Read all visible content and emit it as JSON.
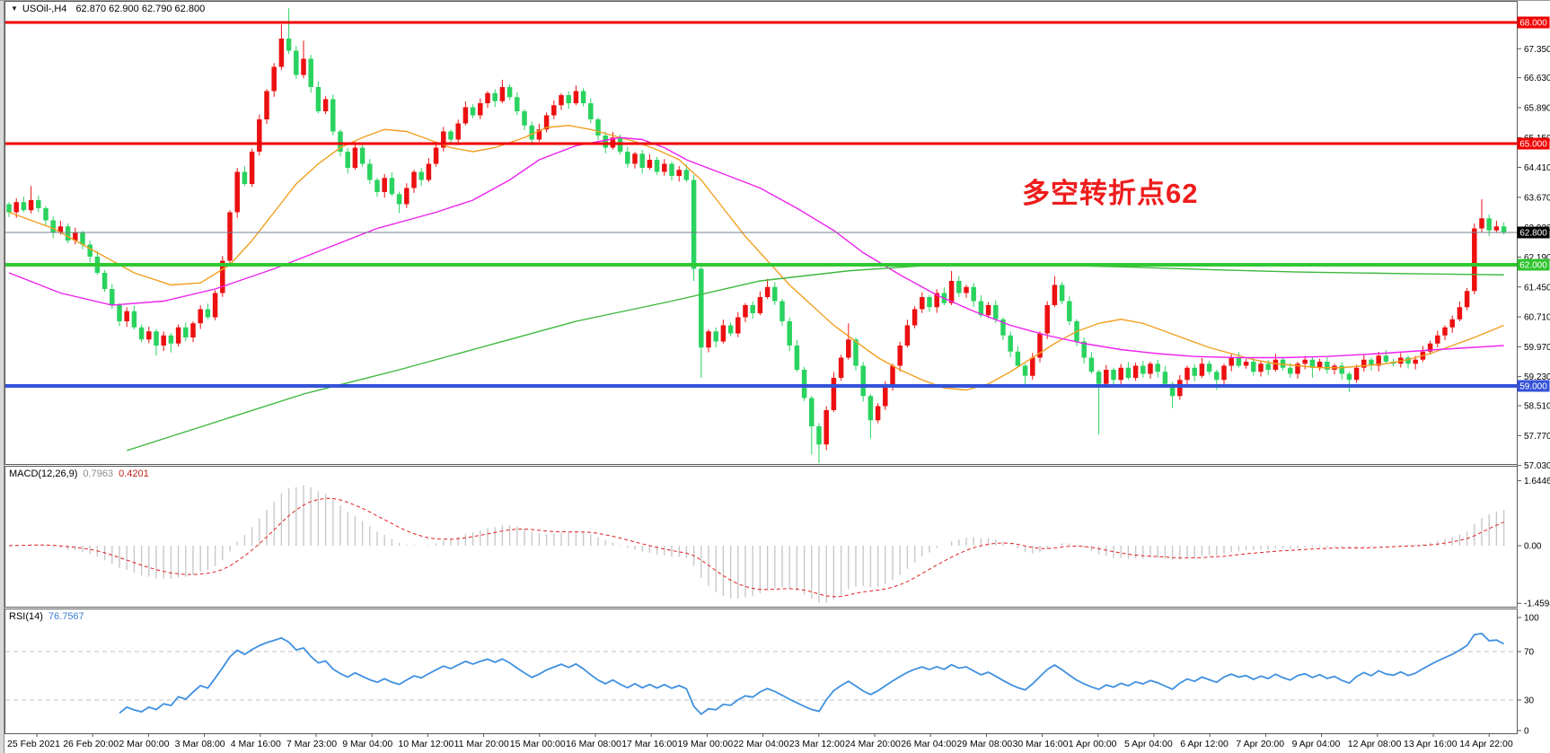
{
  "app": {
    "symbol_line": {
      "dropdown_icon": "▼",
      "symbol": "USOil-,H4",
      "ohlc_quote": "62.870 62.900 62.790 62.800"
    }
  },
  "annotation": {
    "text": "多空转折点62",
    "color": "#ee1c1c"
  },
  "panes": {
    "main": {
      "price_ticks": [
        {
          "text": "67.350",
          "price": 67.35
        },
        {
          "text": "66.630",
          "price": 66.63
        },
        {
          "text": "65.890",
          "price": 65.89
        },
        {
          "text": "65.150",
          "price": 65.15
        },
        {
          "text": "64.410",
          "price": 64.41
        },
        {
          "text": "63.670",
          "price": 63.67
        },
        {
          "text": "62.920",
          "price": 62.92
        },
        {
          "text": "62.190",
          "price": 62.19
        },
        {
          "text": "61.450",
          "price": 61.45
        },
        {
          "text": "60.710",
          "price": 60.71
        },
        {
          "text": "59.970",
          "price": 59.97
        },
        {
          "text": "59.230",
          "price": 59.23
        },
        {
          "text": "58.510",
          "price": 58.51
        },
        {
          "text": "57.770",
          "price": 57.77
        },
        {
          "text": "57.030",
          "price": 57.03
        }
      ],
      "price_badges": [
        {
          "text": "68.000",
          "price": 68.0,
          "bg": "#f00000",
          "fg": "#ffffff"
        },
        {
          "text": "65.000",
          "price": 65.0,
          "bg": "#f00000",
          "fg": "#ffffff"
        },
        {
          "text": "62.800",
          "price": 62.8,
          "bg": "#000000",
          "fg": "#ffffff"
        },
        {
          "text": "62.000",
          "price": 62.0,
          "bg": "#2fc42f",
          "fg": "#ffffff"
        },
        {
          "text": "59.000",
          "price": 59.0,
          "bg": "#3452d8",
          "fg": "#ffffff"
        }
      ]
    },
    "macd": {
      "name": "MACD(12,26,9)",
      "value_main": "0.7963",
      "value_signal": "0.4201",
      "axis_labels": [
        {
          "text": "1.6446",
          "value": 1.6446
        },
        {
          "text": "0.00",
          "value": 0
        },
        {
          "text": "-1.4594",
          "value": -1.4594
        }
      ]
    },
    "rsi": {
      "name": "RSI(14)",
      "value": "76.7567",
      "axis_labels": [
        {
          "text": "100",
          "value": 100
        },
        {
          "text": "70",
          "value": 70
        },
        {
          "text": "30",
          "value": 30
        },
        {
          "text": "0",
          "value": 0
        }
      ],
      "level_lines": [
        70,
        30
      ]
    }
  },
  "time_axis": {
    "labels": [
      "25 Feb 2021",
      "26 Feb 20:00",
      "2 Mar 00:00",
      "3 Mar 08:00",
      "4 Mar 16:00",
      "7 Mar 23:00",
      "9 Mar 04:00",
      "10 Mar 12:00",
      "11 Mar 20:00",
      "15 Mar 00:00",
      "16 Mar 08:00",
      "17 Mar 16:00",
      "19 Mar 00:00",
      "22 Mar 04:00",
      "23 Mar 12:00",
      "24 Mar 20:00",
      "26 Mar 04:00",
      "29 Mar 08:00",
      "30 Mar 16:00",
      "1 Apr 00:00",
      "5 Apr 04:00",
      "6 Apr 12:00",
      "7 Apr 20:00",
      "9 Apr 04:00",
      "12 Apr 08:00",
      "13 Apr 16:00",
      "14 Apr 22:00"
    ]
  },
  "chart_data": {
    "type": "candlestick",
    "symbol": "USOil",
    "timeframe": "H4",
    "title": "USOil-,H4 62.870 62.900 62.790 62.800",
    "color_convention": "red = bullish candle, green = bearish candle",
    "colors": {
      "up_candle": "#ec1010",
      "down_candle": "#2ad35f",
      "ma_fast": "#f0a020",
      "ma_mid": "#ee22ee",
      "ma_slow": "#3cb83c",
      "macd_histogram": "#c8c8c8",
      "macd_signal": "#e02020",
      "rsi_line": "#4090e0",
      "level_dashed": "#c0c0c0",
      "current_price_line": "#708090"
    },
    "price_axis": {
      "visible_min": 57.03,
      "visible_max": 68.09
    },
    "hlines": [
      {
        "label": "68.000",
        "price": 68.0,
        "color": "#f00000",
        "width": 3
      },
      {
        "label": "65.000",
        "price": 65.0,
        "color": "#f00000",
        "width": 3
      },
      {
        "label": "62.000",
        "price": 62.0,
        "color": "#30c830",
        "width": 4
      },
      {
        "label": "59.000",
        "price": 59.0,
        "color": "#3452d8",
        "width": 4
      },
      {
        "label": "62.800 current price",
        "price": 62.8,
        "color": "#708090",
        "width": 1
      }
    ],
    "first_open": 63.5,
    "closes": [
      63.3,
      63.55,
      63.35,
      63.6,
      63.4,
      63.1,
      62.8,
      62.95,
      62.6,
      62.8,
      62.5,
      62.2,
      61.8,
      61.4,
      61.0,
      60.6,
      60.85,
      60.45,
      60.15,
      60.35,
      60.0,
      60.25,
      60.05,
      60.45,
      60.2,
      60.55,
      60.9,
      60.7,
      61.3,
      62.1,
      63.3,
      64.3,
      64.0,
      64.8,
      65.6,
      66.3,
      66.9,
      67.6,
      67.3,
      66.7,
      67.1,
      66.4,
      65.8,
      66.1,
      65.3,
      64.8,
      64.4,
      64.9,
      64.5,
      64.1,
      63.8,
      64.15,
      63.75,
      63.5,
      63.9,
      64.3,
      64.1,
      64.5,
      64.9,
      65.3,
      65.1,
      65.5,
      65.9,
      65.7,
      66.0,
      66.25,
      66.05,
      66.4,
      66.15,
      65.8,
      65.45,
      65.1,
      65.35,
      65.7,
      65.95,
      66.2,
      66.0,
      66.3,
      66.0,
      65.6,
      65.2,
      64.9,
      65.15,
      64.8,
      64.5,
      64.75,
      64.4,
      64.6,
      64.3,
      64.5,
      64.2,
      64.35,
      64.1,
      61.9,
      59.95,
      60.35,
      60.1,
      60.5,
      60.3,
      60.7,
      61.0,
      60.8,
      61.2,
      61.45,
      61.1,
      60.6,
      60.0,
      59.4,
      58.7,
      58.0,
      57.55,
      58.4,
      59.2,
      59.7,
      60.15,
      59.5,
      58.75,
      58.15,
      58.5,
      59.0,
      59.5,
      60.0,
      60.5,
      60.9,
      61.2,
      60.95,
      61.3,
      61.05,
      61.6,
      61.3,
      61.45,
      61.1,
      60.75,
      61.0,
      60.65,
      60.25,
      59.85,
      59.5,
      59.25,
      59.7,
      60.3,
      61.0,
      61.5,
      61.1,
      60.6,
      60.1,
      59.7,
      59.35,
      59.05,
      59.4,
      59.15,
      59.45,
      59.2,
      59.5,
      59.3,
      59.55,
      59.35,
      59.05,
      58.75,
      59.15,
      59.45,
      59.25,
      59.55,
      59.35,
      59.15,
      59.5,
      59.7,
      59.5,
      59.6,
      59.35,
      59.55,
      59.4,
      59.65,
      59.45,
      59.3,
      59.55,
      59.65,
      59.45,
      59.6,
      59.4,
      59.5,
      59.3,
      59.15,
      59.45,
      59.65,
      59.5,
      59.75,
      59.6,
      59.55,
      59.7,
      59.55,
      59.65,
      59.85,
      60.05,
      60.25,
      60.45,
      60.65,
      60.95,
      61.35,
      62.9,
      63.15,
      62.85,
      62.95,
      62.8
    ],
    "default_wick": 0.12,
    "wick_overrides": {
      "3": [
        0.35,
        0.08
      ],
      "20": [
        0.06,
        0.25
      ],
      "22": [
        0.06,
        0.22
      ],
      "37": [
        0.35,
        0.08
      ],
      "38": [
        0.75,
        0.08
      ],
      "40": [
        0.45,
        0.08
      ],
      "53": [
        0.06,
        0.22
      ],
      "67": [
        0.18,
        0.05
      ],
      "93": [
        0.12,
        0.3
      ],
      "94": [
        0.08,
        0.75
      ],
      "103": [
        0.2,
        0.05
      ],
      "109": [
        0.05,
        0.7
      ],
      "110": [
        0.08,
        0.55
      ],
      "114": [
        0.4,
        0.05
      ],
      "117": [
        0.05,
        0.45
      ],
      "128": [
        0.25,
        0.05
      ],
      "138": [
        0.05,
        0.3
      ],
      "142": [
        0.22,
        0.05
      ],
      "148": [
        0.05,
        1.25
      ],
      "158": [
        0.05,
        0.3
      ],
      "164": [
        0.05,
        0.25
      ],
      "177": [
        0.05,
        0.25
      ],
      "182": [
        0.05,
        0.3
      ],
      "199": [
        0.12,
        0.08
      ],
      "200": [
        0.47,
        0.1
      ],
      "203": [
        0.1,
        0.05
      ]
    },
    "moving_averages": [
      {
        "name": "ma-fast-orange",
        "color": "#f0a020",
        "points": [
          [
            0,
            63.3
          ],
          [
            6,
            62.9
          ],
          [
            12,
            62.3
          ],
          [
            17,
            61.8
          ],
          [
            22,
            61.5
          ],
          [
            26,
            61.55
          ],
          [
            30,
            62.0
          ],
          [
            33,
            62.6
          ],
          [
            36,
            63.3
          ],
          [
            39,
            64.0
          ],
          [
            42,
            64.5
          ],
          [
            45,
            64.9
          ],
          [
            48,
            65.15
          ],
          [
            51,
            65.35
          ],
          [
            54,
            65.3
          ],
          [
            57,
            65.1
          ],
          [
            60,
            64.9
          ],
          [
            63,
            64.8
          ],
          [
            66,
            64.9
          ],
          [
            70,
            65.15
          ],
          [
            73,
            65.4
          ],
          [
            76,
            65.45
          ],
          [
            79,
            65.35
          ],
          [
            82,
            65.2
          ],
          [
            85,
            65.05
          ],
          [
            88,
            64.85
          ],
          [
            91,
            64.6
          ],
          [
            94,
            64.1
          ],
          [
            97,
            63.4
          ],
          [
            100,
            62.7
          ],
          [
            103,
            62.1
          ],
          [
            106,
            61.5
          ],
          [
            109,
            61.0
          ],
          [
            112,
            60.5
          ],
          [
            115,
            60.1
          ],
          [
            118,
            59.7
          ],
          [
            121,
            59.4
          ],
          [
            124,
            59.15
          ],
          [
            127,
            58.95
          ],
          [
            130,
            58.9
          ],
          [
            133,
            59.05
          ],
          [
            136,
            59.35
          ],
          [
            139,
            59.7
          ],
          [
            142,
            60.05
          ],
          [
            145,
            60.35
          ],
          [
            148,
            60.55
          ],
          [
            151,
            60.65
          ],
          [
            154,
            60.55
          ],
          [
            157,
            60.35
          ],
          [
            160,
            60.15
          ],
          [
            163,
            59.95
          ],
          [
            166,
            59.8
          ],
          [
            169,
            59.65
          ],
          [
            172,
            59.55
          ],
          [
            175,
            59.5
          ],
          [
            178,
            59.45
          ],
          [
            181,
            59.45
          ],
          [
            184,
            59.5
          ],
          [
            187,
            59.55
          ],
          [
            190,
            59.65
          ],
          [
            193,
            59.8
          ],
          [
            196,
            60.0
          ],
          [
            199,
            60.2
          ],
          [
            203,
            60.5
          ]
        ]
      },
      {
        "name": "ma-mid-magenta",
        "color": "#ee22ee",
        "points": [
          [
            0,
            61.8
          ],
          [
            7,
            61.3
          ],
          [
            14,
            61.0
          ],
          [
            21,
            61.1
          ],
          [
            28,
            61.4
          ],
          [
            36,
            61.9
          ],
          [
            43,
            62.4
          ],
          [
            50,
            62.9
          ],
          [
            58,
            63.3
          ],
          [
            63,
            63.6
          ],
          [
            68,
            64.1
          ],
          [
            72,
            64.6
          ],
          [
            77,
            64.95
          ],
          [
            83,
            65.15
          ],
          [
            86,
            65.1
          ],
          [
            89,
            64.9
          ],
          [
            92,
            64.6
          ],
          [
            97,
            64.25
          ],
          [
            102,
            63.9
          ],
          [
            107,
            63.4
          ],
          [
            112,
            62.85
          ],
          [
            116,
            62.3
          ],
          [
            121,
            61.75
          ],
          [
            126,
            61.25
          ],
          [
            131,
            60.85
          ],
          [
            136,
            60.5
          ],
          [
            141,
            60.25
          ],
          [
            146,
            60.05
          ],
          [
            151,
            59.9
          ],
          [
            156,
            59.8
          ],
          [
            161,
            59.73
          ],
          [
            167,
            59.7
          ],
          [
            173,
            59.7
          ],
          [
            179,
            59.73
          ],
          [
            186,
            59.8
          ],
          [
            194,
            59.9
          ],
          [
            203,
            60.0
          ]
        ]
      },
      {
        "name": "ma-slow-green",
        "color": "#3cb83c",
        "points": [
          [
            16,
            57.4
          ],
          [
            28,
            58.1
          ],
          [
            40,
            58.8
          ],
          [
            53,
            59.4
          ],
          [
            65,
            60.0
          ],
          [
            77,
            60.6
          ],
          [
            90,
            61.1
          ],
          [
            102,
            61.6
          ],
          [
            114,
            61.85
          ],
          [
            126,
            62.0
          ],
          [
            139,
            62.0
          ],
          [
            151,
            61.95
          ],
          [
            163,
            61.88
          ],
          [
            175,
            61.82
          ],
          [
            190,
            61.78
          ],
          [
            203,
            61.75
          ]
        ]
      }
    ],
    "indicators": {
      "macd": {
        "fast": 12,
        "slow": 26,
        "signal": 9,
        "current_main": 0.7963,
        "current_signal": 0.4201,
        "axis_max": 1.6446,
        "axis_min": -1.4594
      },
      "rsi": {
        "period": 14,
        "current": 76.7567,
        "levels": [
          70,
          30
        ],
        "axis": [
          0,
          100
        ]
      }
    }
  }
}
